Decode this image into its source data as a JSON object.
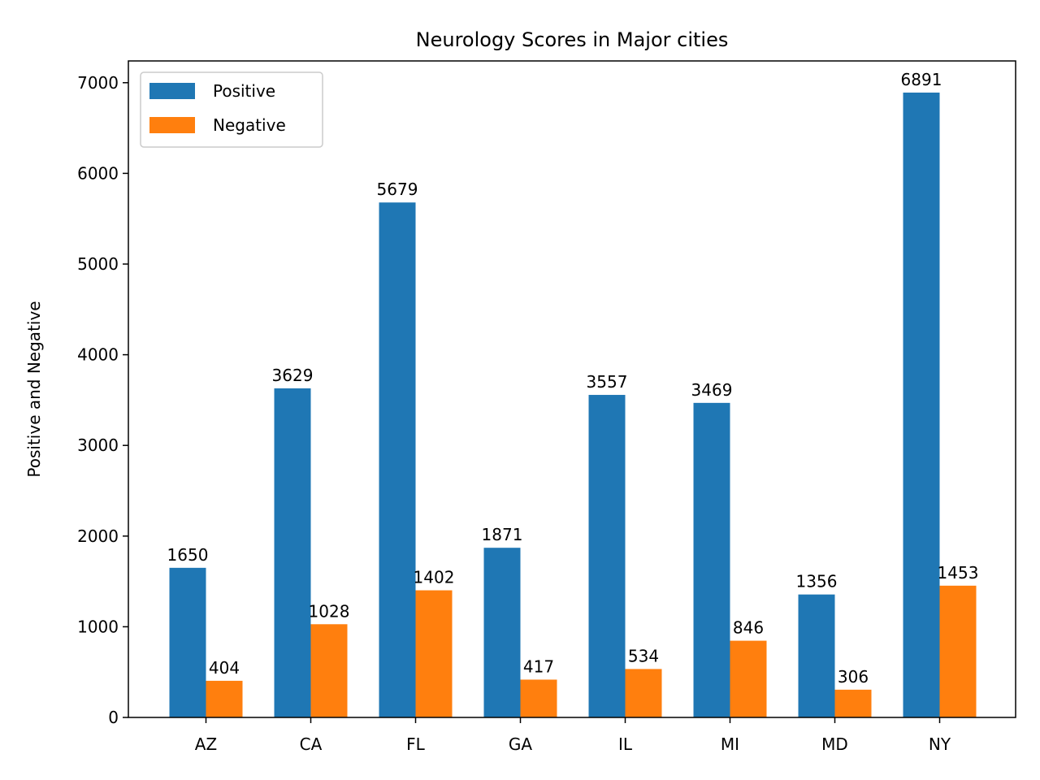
{
  "chart_data": {
    "type": "bar",
    "title": "Neurology Scores in Major cities",
    "xlabel": "",
    "ylabel": "Positive and Negative",
    "categories": [
      "AZ",
      "CA",
      "FL",
      "GA",
      "IL",
      "MI",
      "MD",
      "NY"
    ],
    "series": [
      {
        "name": "Positive",
        "color": "#1f77b4",
        "values": [
          1650,
          3629,
          5679,
          1871,
          3557,
          3469,
          1356,
          6891
        ]
      },
      {
        "name": "Negative",
        "color": "#ff7f0e",
        "values": [
          404,
          1028,
          1402,
          417,
          534,
          846,
          306,
          1453
        ]
      }
    ],
    "ylim": [
      0,
      7240
    ],
    "yticks": [
      0,
      1000,
      2000,
      3000,
      4000,
      5000,
      6000,
      7000
    ],
    "grid": false,
    "legend_position": "top-left"
  }
}
